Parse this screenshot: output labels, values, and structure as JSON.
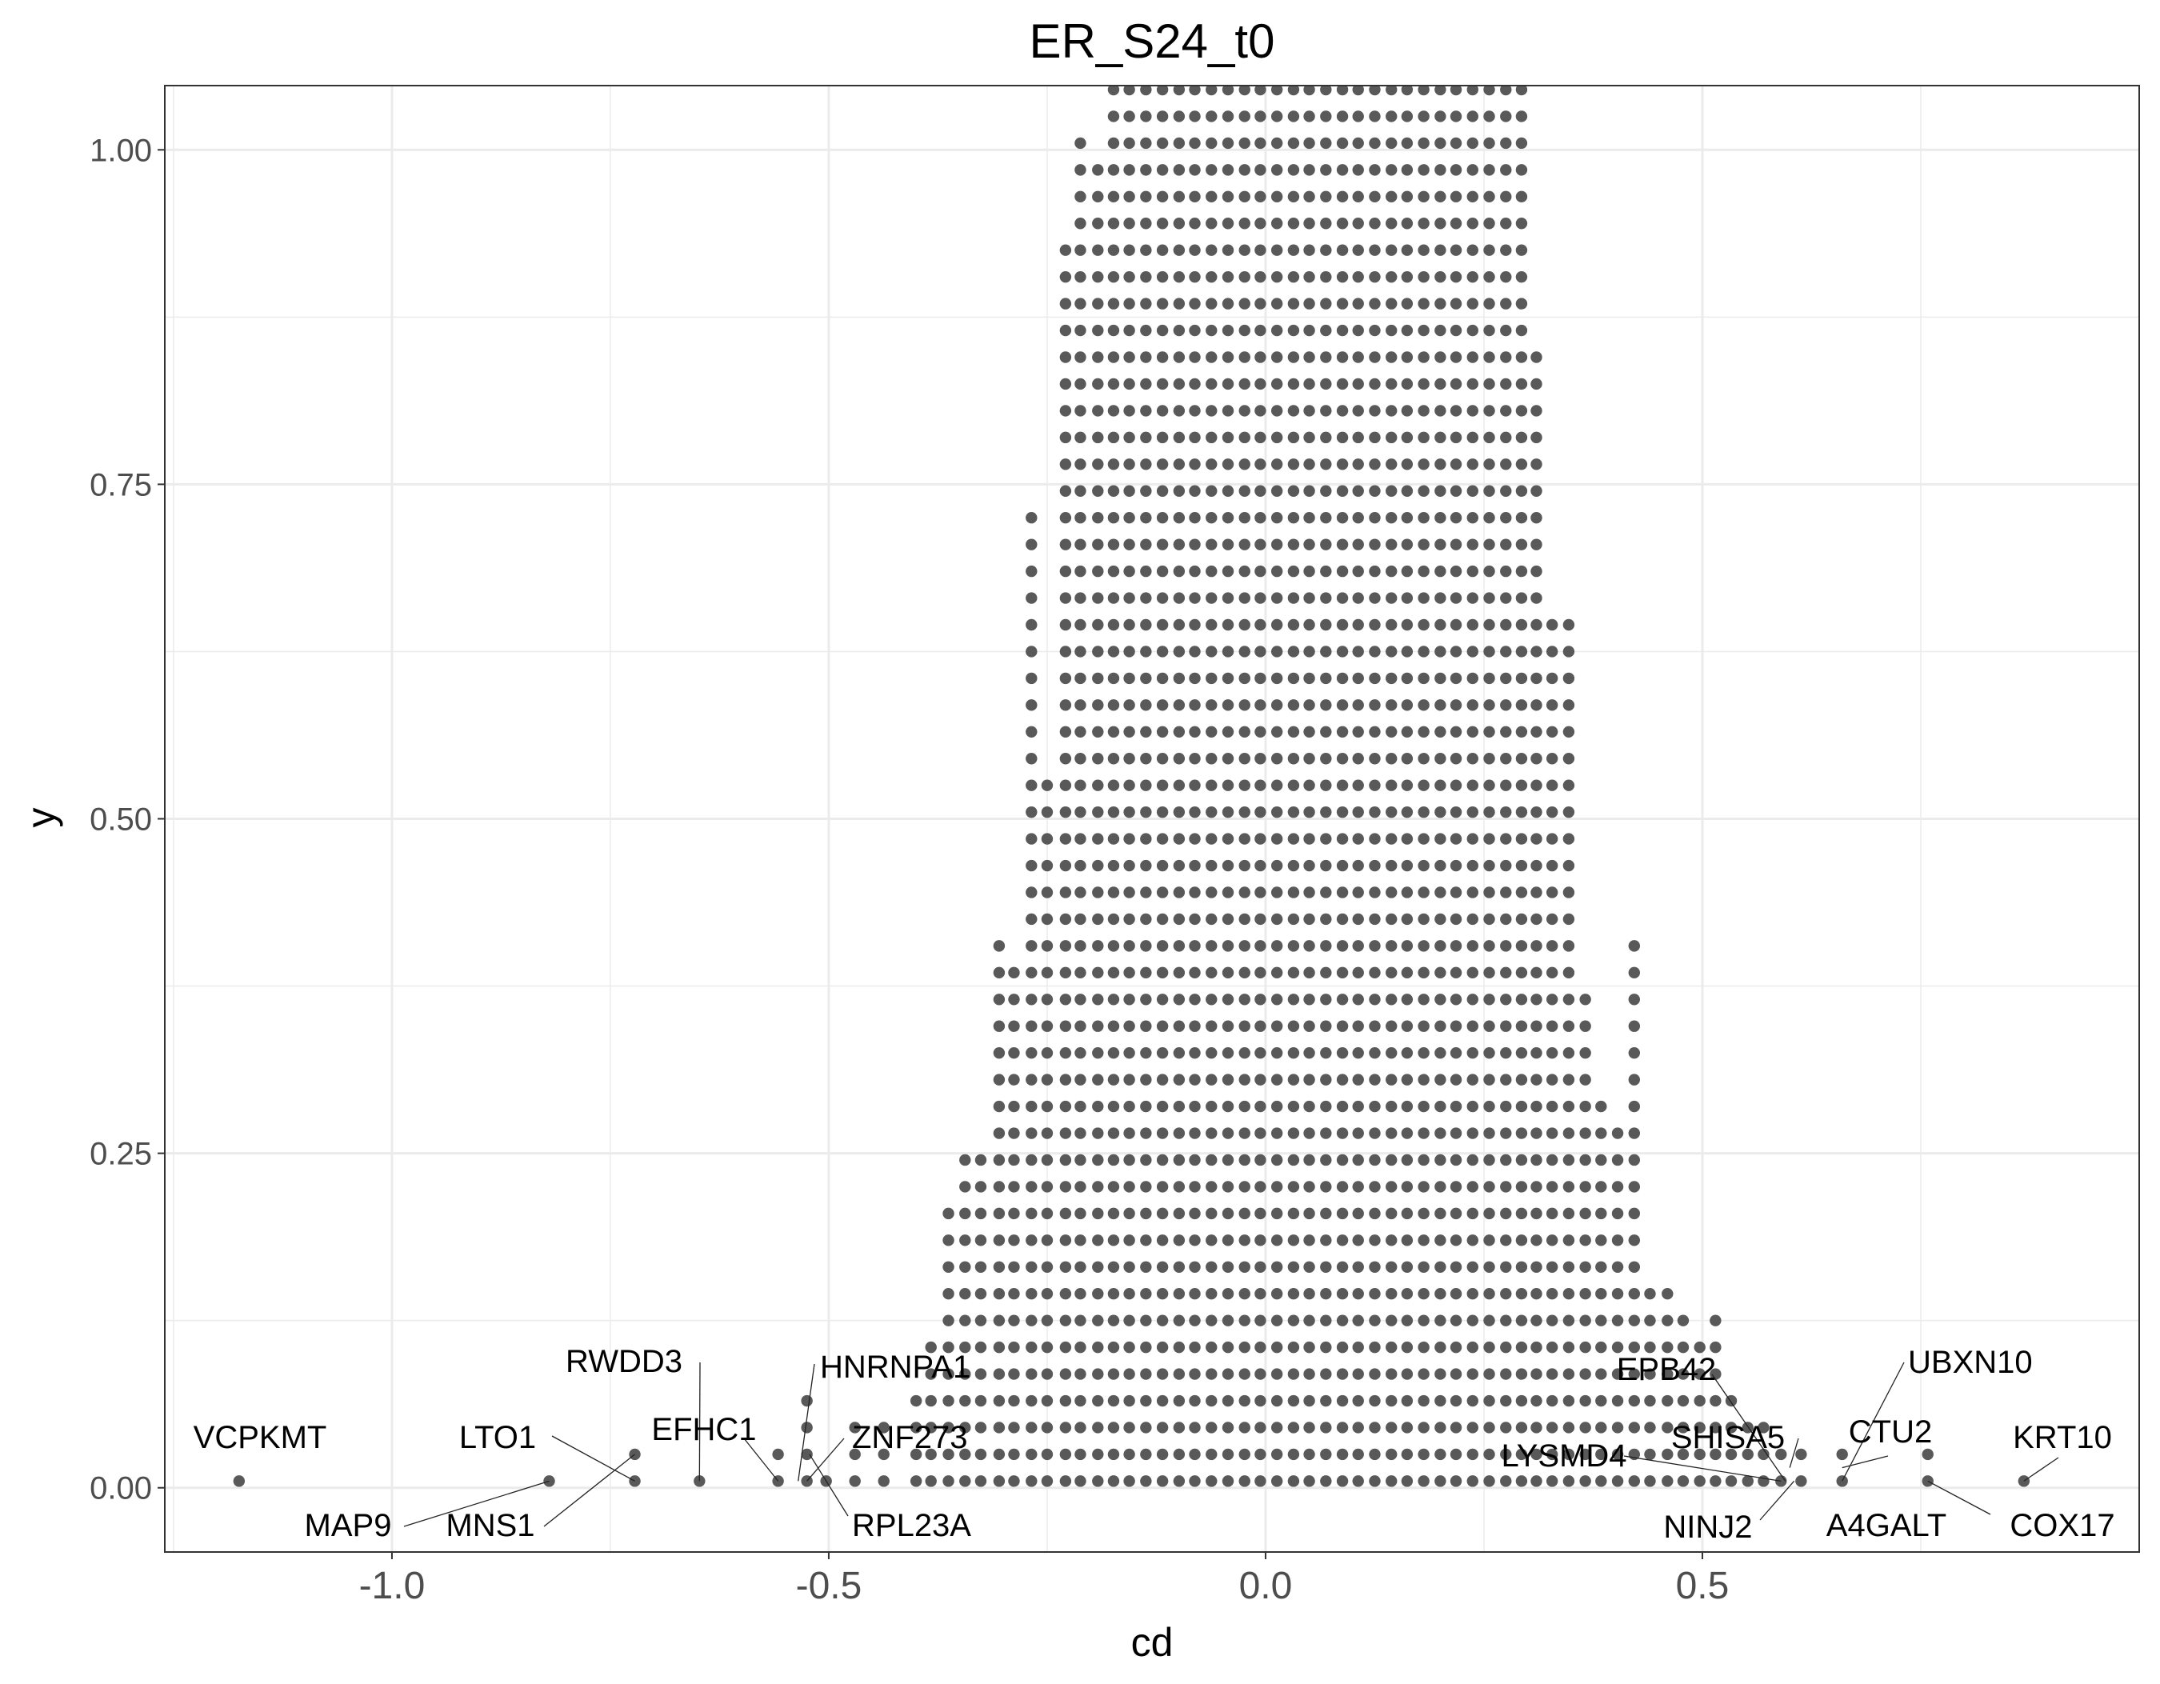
{
  "chart_data": {
    "type": "scatter",
    "subtype": "dotplot",
    "title": "ER_S24_t0",
    "xlabel": "cd",
    "ylabel": "y",
    "xlim": [
      -1.26,
      1.0
    ],
    "ylim": [
      -0.048,
      1.048
    ],
    "x_ticks": [
      -1.0,
      -0.5,
      0.0,
      0.5
    ],
    "x_tick_labels": [
      "-1.0",
      "-0.5",
      "0.0",
      "0.5"
    ],
    "y_ticks": [
      0.0,
      0.25,
      0.5,
      0.75,
      1.0
    ],
    "y_tick_labels": [
      "0.00",
      "0.25",
      "0.50",
      "0.75",
      "1.00"
    ],
    "grid": true,
    "theme": "bw",
    "point_color": "#595959",
    "dot_step": 0.02,
    "dot_base": 0.005,
    "stack_columns": [
      {
        "x": -1.175,
        "n": 1
      },
      {
        "x": -0.82,
        "n": 1
      },
      {
        "x": -0.722,
        "n": 2
      },
      {
        "x": -0.648,
        "n": 1
      },
      {
        "x": -0.558,
        "n": 2
      },
      {
        "x": -0.525,
        "n": 4
      },
      {
        "x": -0.503,
        "n": 1
      },
      {
        "x": -0.47,
        "n": 3
      },
      {
        "x": -0.437,
        "n": 3
      },
      {
        "x": -0.4,
        "n": 4
      },
      {
        "x": -0.383,
        "n": 6
      },
      {
        "x": -0.363,
        "n": 11
      },
      {
        "x": -0.344,
        "n": 13
      },
      {
        "x": -0.326,
        "n": 13
      },
      {
        "x": -0.305,
        "n": 21
      },
      {
        "x": -0.288,
        "n": 20
      },
      {
        "x": -0.268,
        "n": 37
      },
      {
        "x": -0.25,
        "n": 27
      },
      {
        "x": -0.229,
        "n": 47
      },
      {
        "x": -0.212,
        "n": 51
      },
      {
        "x": -0.192,
        "n": 50
      },
      {
        "x": -0.174,
        "n": 53
      },
      {
        "x": -0.156,
        "n": 53
      },
      {
        "x": -0.137,
        "n": 53
      },
      {
        "x": -0.118,
        "n": 53
      },
      {
        "x": -0.099,
        "n": 53
      },
      {
        "x": -0.081,
        "n": 53
      },
      {
        "x": -0.062,
        "n": 53
      },
      {
        "x": -0.043,
        "n": 53
      },
      {
        "x": -0.024,
        "n": 53
      },
      {
        "x": -0.006,
        "n": 53
      },
      {
        "x": 0.013,
        "n": 53
      },
      {
        "x": 0.032,
        "n": 53
      },
      {
        "x": 0.05,
        "n": 53
      },
      {
        "x": 0.069,
        "n": 53
      },
      {
        "x": 0.088,
        "n": 53
      },
      {
        "x": 0.106,
        "n": 53
      },
      {
        "x": 0.125,
        "n": 53
      },
      {
        "x": 0.144,
        "n": 53
      },
      {
        "x": 0.162,
        "n": 53
      },
      {
        "x": 0.181,
        "n": 53
      },
      {
        "x": 0.2,
        "n": 53
      },
      {
        "x": 0.218,
        "n": 53
      },
      {
        "x": 0.237,
        "n": 53
      },
      {
        "x": 0.256,
        "n": 53
      },
      {
        "x": 0.275,
        "n": 53
      },
      {
        "x": 0.293,
        "n": 53
      },
      {
        "x": 0.31,
        "n": 43
      },
      {
        "x": 0.328,
        "n": 33
      },
      {
        "x": 0.347,
        "n": 33
      },
      {
        "x": 0.366,
        "n": 19
      },
      {
        "x": 0.384,
        "n": 15
      },
      {
        "x": 0.403,
        "n": 14
      },
      {
        "x": 0.422,
        "n": 21
      },
      {
        "x": 0.44,
        "n": 8
      },
      {
        "x": 0.46,
        "n": 8
      },
      {
        "x": 0.478,
        "n": 7
      },
      {
        "x": 0.497,
        "n": 6
      },
      {
        "x": 0.515,
        "n": 7
      },
      {
        "x": 0.533,
        "n": 4
      },
      {
        "x": 0.552,
        "n": 3
      },
      {
        "x": 0.57,
        "n": 3
      },
      {
        "x": 0.59,
        "n": 2
      },
      {
        "x": 0.613,
        "n": 2
      },
      {
        "x": 0.66,
        "n": 2
      },
      {
        "x": 0.758,
        "n": 2
      },
      {
        "x": 0.868,
        "n": 1
      }
    ],
    "annotations": [
      {
        "label": "VCPKMT",
        "x": -1.175,
        "y": 0.005
      },
      {
        "label": "MAP9",
        "x": -0.82,
        "y": 0.005
      },
      {
        "label": "LTO1",
        "x": -0.722,
        "y": 0.005
      },
      {
        "label": "MNS1",
        "x": -0.722,
        "y": 0.025
      },
      {
        "label": "RWDD3",
        "x": -0.648,
        "y": 0.005
      },
      {
        "label": "EFHC1",
        "x": -0.558,
        "y": 0.005
      },
      {
        "label": "HNRNPA1",
        "x": -0.535,
        "y": 0.005
      },
      {
        "label": "ZNF273",
        "x": -0.525,
        "y": 0.005
      },
      {
        "label": "RPL23A",
        "x": -0.522,
        "y": 0.025
      },
      {
        "label": "EPB42",
        "x": 0.595,
        "y": 0.005
      },
      {
        "label": "SHISA5",
        "x": 0.6,
        "y": 0.015
      },
      {
        "label": "LYSMD4",
        "x": 0.59,
        "y": 0.005
      },
      {
        "label": "NINJ2",
        "x": 0.605,
        "y": 0.005
      },
      {
        "label": "UBXN10",
        "x": 0.66,
        "y": 0.005
      },
      {
        "label": "CTU2",
        "x": 0.66,
        "y": 0.015
      },
      {
        "label": "A4GALT",
        "x": 0.758,
        "y": 0.015
      },
      {
        "label": "COX17",
        "x": 0.758,
        "y": 0.005
      },
      {
        "label": "KRT10",
        "x": 0.868,
        "y": 0.005
      }
    ]
  }
}
